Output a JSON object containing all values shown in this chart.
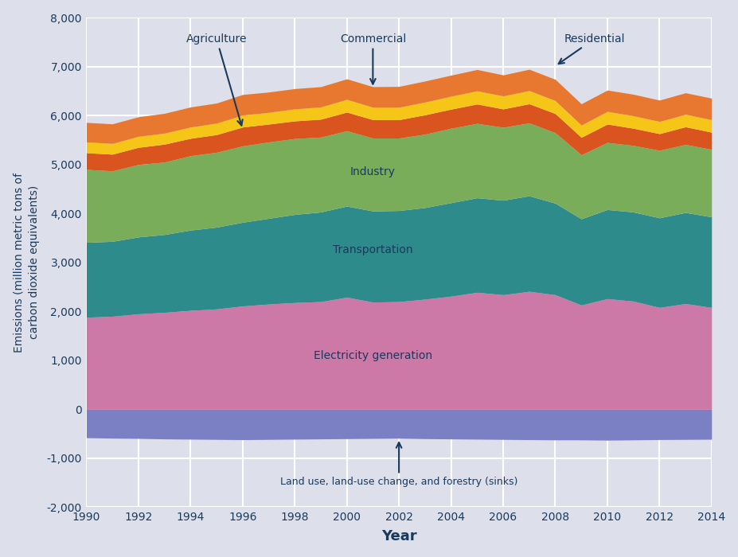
{
  "years": [
    1990,
    1991,
    1992,
    1993,
    1994,
    1995,
    1996,
    1997,
    1998,
    1999,
    2000,
    2001,
    2002,
    2003,
    2004,
    2005,
    2006,
    2007,
    2008,
    2009,
    2010,
    2011,
    2012,
    2013,
    2014
  ],
  "land_use": [
    -580,
    -590,
    -595,
    -605,
    -610,
    -615,
    -620,
    -615,
    -610,
    -605,
    -600,
    -595,
    -590,
    -600,
    -605,
    -610,
    -615,
    -620,
    -625,
    -625,
    -630,
    -625,
    -618,
    -615,
    -612
  ],
  "electricity": [
    1880,
    1900,
    1950,
    1980,
    2020,
    2050,
    2110,
    2150,
    2180,
    2200,
    2290,
    2190,
    2200,
    2250,
    2310,
    2390,
    2340,
    2410,
    2340,
    2130,
    2260,
    2210,
    2080,
    2160,
    2080
  ],
  "transportation": [
    1530,
    1530,
    1570,
    1590,
    1640,
    1670,
    1710,
    1750,
    1800,
    1830,
    1860,
    1860,
    1860,
    1870,
    1910,
    1930,
    1930,
    1950,
    1870,
    1760,
    1820,
    1820,
    1830,
    1860,
    1850
  ],
  "industry": [
    1490,
    1440,
    1480,
    1480,
    1520,
    1530,
    1560,
    1560,
    1550,
    1530,
    1540,
    1490,
    1480,
    1500,
    1520,
    1520,
    1490,
    1490,
    1440,
    1310,
    1370,
    1360,
    1380,
    1390,
    1380
  ],
  "residential": [
    340,
    340,
    350,
    365,
    355,
    360,
    385,
    365,
    360,
    365,
    380,
    375,
    375,
    395,
    390,
    395,
    375,
    390,
    390,
    355,
    375,
    350,
    340,
    360,
    350
  ],
  "commercial": [
    220,
    220,
    225,
    225,
    230,
    235,
    245,
    240,
    245,
    250,
    260,
    255,
    255,
    260,
    265,
    270,
    265,
    270,
    265,
    250,
    260,
    255,
    250,
    255,
    255
  ],
  "agriculture": [
    400,
    400,
    400,
    405,
    410,
    410,
    420,
    415,
    415,
    415,
    420,
    420,
    425,
    430,
    430,
    435,
    430,
    435,
    435,
    435,
    435,
    440,
    435,
    440,
    440
  ],
  "colors": {
    "land_use": "#7b7fc4",
    "electricity": "#cc79a7",
    "transportation": "#2e8b8b",
    "industry": "#7aad5a",
    "residential": "#d9541e",
    "commercial": "#f5c518",
    "agriculture": "#e87830"
  },
  "ylabel": "Emissions (million metric tons of\ncarbon dioxide equivalents)",
  "xlabel": "Year",
  "ylim": [
    -2000,
    8000
  ],
  "yticks": [
    -2000,
    -1000,
    0,
    1000,
    2000,
    3000,
    4000,
    5000,
    6000,
    7000,
    8000
  ],
  "xticks": [
    1990,
    1992,
    1994,
    1996,
    1998,
    2000,
    2002,
    2004,
    2006,
    2008,
    2010,
    2012,
    2014
  ],
  "background_color": "#dde0ea",
  "text_color": "#1a3a5c",
  "grid_color": "#ffffff"
}
